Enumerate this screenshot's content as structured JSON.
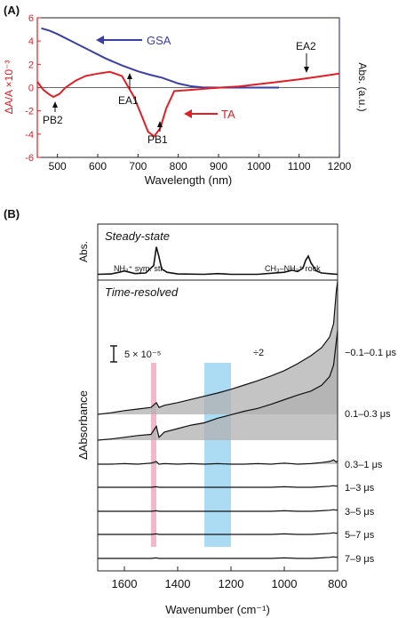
{
  "chart_data": [
    {
      "panel": "(A)",
      "type": "line",
      "xlabel": "Wavelength (nm)",
      "ylabel_left": "ΔA/A ×10⁻³",
      "ylabel_right": "Abs. (a.u.)",
      "xlim": [
        450,
        1200
      ],
      "ylim": [
        -6,
        6
      ],
      "x_ticks": [
        500,
        600,
        700,
        800,
        900,
        1000,
        1100,
        1200
      ],
      "y_ticks": [
        -6,
        -4,
        -2,
        0,
        2,
        4,
        6
      ],
      "series": [
        {
          "name": "GSA",
          "color": "#3a3fa8",
          "x": [
            460,
            480,
            500,
            540,
            580,
            620,
            660,
            700,
            730,
            760,
            780,
            800,
            830,
            860,
            900,
            950,
            1000,
            1050
          ],
          "y": [
            5.1,
            4.9,
            4.6,
            3.9,
            3.2,
            2.5,
            1.9,
            1.4,
            1.1,
            0.85,
            0.6,
            0.35,
            0.12,
            0.02,
            0.0,
            0.0,
            0.0,
            0.0
          ]
        },
        {
          "name": "TA",
          "color": "#e11f26",
          "x": [
            450,
            465,
            480,
            490,
            505,
            520,
            545,
            570,
            600,
            630,
            660,
            690,
            710,
            725,
            740,
            755,
            770,
            790,
            830,
            880,
            950,
            1000,
            1050,
            1100,
            1140,
            1170,
            1200
          ],
          "y": [
            0.5,
            -0.2,
            -0.6,
            -0.8,
            -0.55,
            0.0,
            0.6,
            1.0,
            1.2,
            1.35,
            1.0,
            -0.8,
            -2.5,
            -3.8,
            -4.2,
            -3.5,
            -1.8,
            -0.3,
            -0.2,
            -0.05,
            0.1,
            0.3,
            0.5,
            0.7,
            0.9,
            1.05,
            1.2
          ]
        }
      ],
      "annotations": [
        "GSA",
        "TA",
        "EA1",
        "EA2",
        "PB1",
        "PB2"
      ]
    },
    {
      "panel": "(B)",
      "type": "line",
      "xlabel": "Wavenumber (cm⁻¹)",
      "xlim": [
        1700,
        800
      ],
      "x_ticks": [
        1600,
        1400,
        1200,
        1000,
        800
      ],
      "steady_state": {
        "title": "Steady-state",
        "ylabel": "Abs.",
        "peak_labels": [
          "NH₃⁺ sym. str.",
          "CH₃–NH₃⁺ rock"
        ],
        "x": [
          1700,
          1650,
          1620,
          1600,
          1580,
          1560,
          1520,
          1490,
          1480,
          1470,
          1460,
          1440,
          1400,
          1300,
          1250,
          1200,
          1100,
          1000,
          970,
          950,
          930,
          920,
          910,
          900,
          880,
          860,
          820,
          800
        ],
        "y": [
          0.04,
          0.05,
          0.1,
          0.14,
          0.1,
          0.06,
          0.08,
          0.3,
          0.85,
          0.55,
          0.2,
          0.1,
          0.05,
          0.04,
          0.06,
          0.04,
          0.04,
          0.1,
          0.16,
          0.12,
          0.22,
          0.45,
          0.58,
          0.38,
          0.14,
          0.08,
          0.05,
          0.04
        ]
      },
      "time_resolved": {
        "title": "Time-resolved",
        "ylabel": "ΔAbsorbance",
        "scale_bar": "5 × 10⁻⁵",
        "divide_note": "÷2",
        "labels": [
          "−0.1–0.1 μs",
          "0.1–0.3 μs",
          "0.3–1 μs",
          "1–3 μs",
          "3–5 μs",
          "5–7 μs",
          "7–9 μs"
        ],
        "shaded_bands": [
          {
            "from": 1500,
            "to": 1480,
            "color": "#ee9fb8"
          },
          {
            "from": 1300,
            "to": 1200,
            "color": "#8fd0f0"
          }
        ],
        "trace_x": [
          1700,
          1650,
          1600,
          1550,
          1500,
          1480,
          1470,
          1450,
          1400,
          1350,
          1300,
          1250,
          1200,
          1150,
          1100,
          1050,
          1000,
          950,
          900,
          860,
          830,
          815,
          805,
          800
        ],
        "trace_1": [
          0.0,
          0.03,
          0.07,
          0.1,
          0.13,
          0.22,
          0.13,
          0.17,
          0.22,
          0.28,
          0.34,
          0.4,
          0.47,
          0.55,
          0.63,
          0.72,
          0.82,
          0.95,
          1.1,
          1.25,
          1.45,
          1.7,
          2.3,
          2.5
        ],
        "trace_2": [
          0.0,
          0.02,
          0.05,
          0.08,
          0.1,
          0.24,
          0.05,
          0.14,
          0.2,
          0.26,
          0.3,
          0.38,
          0.44,
          0.5,
          0.55,
          0.62,
          0.7,
          0.78,
          0.85,
          0.95,
          1.1,
          1.3,
          1.7,
          1.9
        ],
        "trace_3": [
          0.0,
          0.0,
          0.01,
          0.0,
          0.02,
          0.05,
          0.0,
          0.01,
          0.0,
          0.01,
          0.0,
          0.01,
          0.0,
          0.0,
          0.01,
          0.0,
          0.02,
          0.0,
          0.01,
          0.03,
          0.05,
          0.08,
          0.04,
          0.06
        ],
        "trace_flat": [
          0.0,
          0.0,
          0.0,
          0.0,
          0.0,
          0.01,
          0.0,
          0.0,
          0.0,
          0.0,
          0.0,
          0.0,
          0.0,
          0.0,
          0.0,
          0.0,
          0.01,
          0.0,
          0.0,
          0.01,
          0.02,
          0.03,
          0.02,
          0.03
        ]
      }
    }
  ]
}
